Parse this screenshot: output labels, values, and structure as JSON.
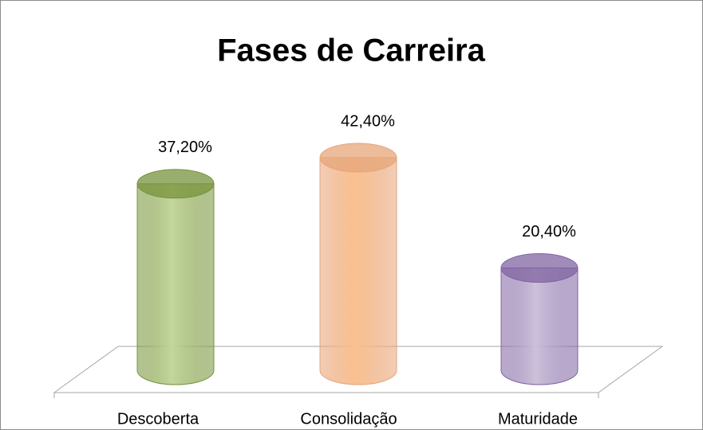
{
  "chart_data": {
    "type": "cylinder",
    "title": "Fases de Carreira",
    "categories": [
      "Descoberta",
      "Consolidação",
      "Maturidade"
    ],
    "values": [
      37.2,
      42.4,
      20.4
    ],
    "value_labels": [
      "37,20%",
      "42,40%",
      "20,40%"
    ],
    "colors": [
      "#c3d69b",
      "#fac090",
      "#ccc1da"
    ],
    "edge_colors": [
      "#77933c",
      "#e6a57a",
      "#8064a2"
    ]
  }
}
